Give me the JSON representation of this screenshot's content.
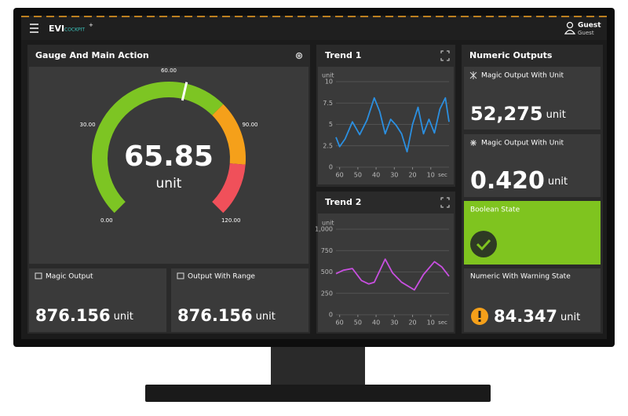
{
  "header": {
    "logo": "EVI",
    "logo_sub": "COCKPIT",
    "logo_sup": "+",
    "user_name": "Guest",
    "user_role": "Guest"
  },
  "gauge_panel": {
    "title": "Gauge And Main Action",
    "gauge": {
      "value": 65.85,
      "unit": "unit",
      "ticks": [
        {
          "value": 0,
          "label": "0.00"
        },
        {
          "value": 30,
          "label": "30.00"
        },
        {
          "value": 60,
          "label": "60.00"
        },
        {
          "value": 90,
          "label": "90.00"
        },
        {
          "value": 120,
          "label": "120.00"
        }
      ]
    },
    "cards": [
      {
        "title": "Magic Output",
        "value": "876.156",
        "unit": "unit"
      },
      {
        "title": "Output With Range",
        "value": "876.156",
        "unit": "unit"
      }
    ]
  },
  "trends": [
    {
      "title": "Trend 1",
      "chart": {
        "type": "line",
        "y_label": "unit",
        "x_unit": "sec",
        "color": "#2b8fe0",
        "x": [
          62,
          60,
          57,
          53,
          49,
          45,
          41,
          38,
          35,
          32,
          29,
          26,
          23,
          20,
          17,
          14,
          11,
          8,
          5,
          2,
          0
        ],
        "values": [
          3.5,
          2.4,
          3.3,
          5.3,
          3.8,
          5.5,
          8.1,
          6.5,
          3.9,
          5.6,
          4.9,
          3.9,
          1.8,
          5.0,
          7.0,
          3.9,
          5.6,
          4.0,
          6.8,
          8.1,
          5.3
        ],
        "xlim": [
          62,
          0
        ],
        "ylim": [
          0,
          10
        ],
        "xticks": [
          60,
          50,
          40,
          30,
          20,
          10
        ],
        "yticks": [
          0,
          2.5,
          5,
          7.5,
          10
        ],
        "grid": true
      }
    },
    {
      "title": "Trend 2",
      "chart": {
        "type": "line",
        "y_label": "unit",
        "x_unit": "sec",
        "color": "#c84fe0",
        "x": [
          62,
          58,
          53,
          48,
          44,
          41,
          35,
          31,
          26,
          19,
          14,
          8,
          4,
          0
        ],
        "values": [
          480,
          520,
          540,
          400,
          360,
          380,
          650,
          490,
          380,
          290,
          470,
          620,
          560,
          450
        ],
        "xlim": [
          62,
          0
        ],
        "ylim": [
          0,
          1000
        ],
        "xticks": [
          60,
          50,
          40,
          30,
          20,
          10
        ],
        "yticks": [
          0,
          250,
          500,
          750,
          {
            "value": 1000,
            "label": "1,000"
          }
        ],
        "grid": true
      }
    }
  ],
  "numeric_panel": {
    "title": "Numeric Outputs",
    "cards": [
      {
        "title": "Magic Output With Unit",
        "value": "52,275",
        "unit": "unit"
      },
      {
        "title": "Magic Output With Unit",
        "value": "0.420",
        "unit": "unit"
      }
    ],
    "boolean": {
      "title": "Boolean State"
    },
    "warning": {
      "title": "Numeric With Warning State",
      "value": "84.347",
      "unit": "unit"
    }
  }
}
